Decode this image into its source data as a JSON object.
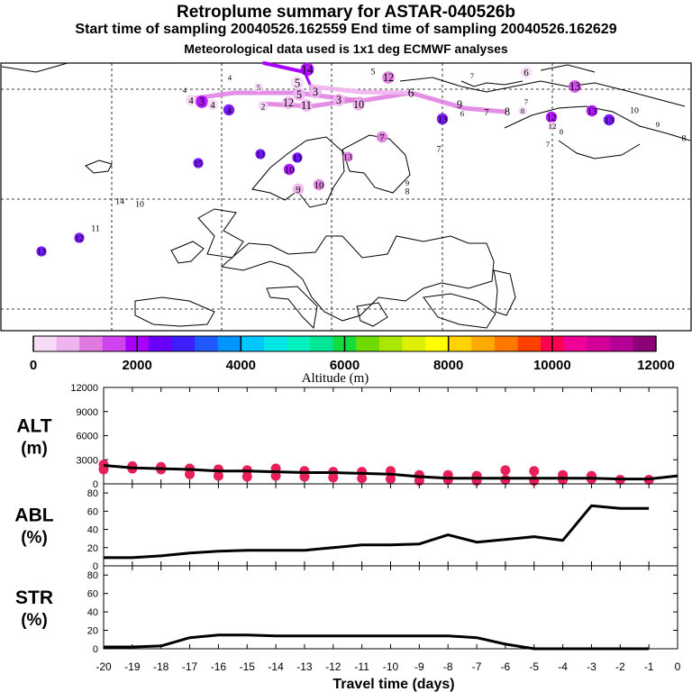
{
  "header": {
    "title": "Retroplume summary for ASTAR-040526b",
    "sampling_line": "Start time of sampling 20040526.162559     End time of sampling 20040526.162629",
    "met_line": "Meteorological data used is 1x1 deg ECMWF analyses"
  },
  "map": {
    "markers": [
      {
        "label": "14",
        "alt": 1800
      },
      {
        "label": "5",
        "alt": 300
      },
      {
        "label": "12",
        "alt": 1200
      },
      {
        "label": "6",
        "alt": 300
      },
      {
        "label": "5",
        "alt": 200
      },
      {
        "label": "13",
        "alt": 1500
      },
      {
        "label": "4",
        "alt": 200
      },
      {
        "label": "5",
        "alt": 300
      },
      {
        "label": "4",
        "alt": 200
      },
      {
        "label": "4",
        "alt": 400
      },
      {
        "label": "5",
        "alt": 600
      },
      {
        "label": "3",
        "alt": 2200
      },
      {
        "label": "4",
        "alt": 400
      },
      {
        "label": "4",
        "alt": 2500
      },
      {
        "label": "2",
        "alt": 300
      },
      {
        "label": "3",
        "alt": 600
      },
      {
        "label": "12",
        "alt": 600
      },
      {
        "label": "11",
        "alt": 800
      },
      {
        "label": "3",
        "alt": 600
      },
      {
        "label": "10",
        "alt": 600
      },
      {
        "label": "6",
        "alt": 200
      },
      {
        "label": "9",
        "alt": 200
      },
      {
        "label": "7",
        "alt": 200
      },
      {
        "label": "8",
        "alt": 200
      },
      {
        "label": "7",
        "alt": 200
      },
      {
        "label": "13",
        "alt": 2300
      },
      {
        "label": "6",
        "alt": 200
      },
      {
        "label": "12",
        "alt": 2000
      },
      {
        "label": "13",
        "alt": 2200
      },
      {
        "label": "8",
        "alt": 200
      },
      {
        "label": "13",
        "alt": 2300
      },
      {
        "label": "15",
        "alt": 2400
      },
      {
        "label": "10",
        "alt": 200
      },
      {
        "label": "9",
        "alt": 200
      },
      {
        "label": "8",
        "alt": 200
      },
      {
        "label": "7",
        "alt": 1200
      },
      {
        "label": "7",
        "alt": 200
      },
      {
        "label": "12",
        "alt": 400
      },
      {
        "label": "7",
        "alt": 200
      },
      {
        "label": "13",
        "alt": 2400
      },
      {
        "label": "15",
        "alt": 300
      },
      {
        "label": "13",
        "alt": 2400
      },
      {
        "label": "10",
        "alt": 1800
      },
      {
        "label": "13",
        "alt": 1200
      },
      {
        "label": "8",
        "alt": 200
      },
      {
        "label": "9",
        "alt": 600
      },
      {
        "label": "10",
        "alt": 1200
      },
      {
        "label": "9",
        "alt": 200
      },
      {
        "label": "8",
        "alt": 400
      },
      {
        "label": "14",
        "alt": 200
      },
      {
        "label": "10",
        "alt": 200
      },
      {
        "label": "11",
        "alt": 200
      },
      {
        "label": "12",
        "alt": 2300
      },
      {
        "label": "13",
        "alt": 2300
      },
      {
        "label": "7",
        "alt": 200
      }
    ]
  },
  "colorbar": {
    "title": "Altitude (m)",
    "ticks": [
      "0",
      "2000",
      "4000",
      "6000",
      "8000",
      "10000",
      "12000"
    ],
    "colors": [
      "#f6dcf6",
      "#efb4ef",
      "#e07ae0",
      "#cf44ef",
      "#a800ff",
      "#6a00ff",
      "#3c1eff",
      "#1e5aff",
      "#0096ff",
      "#00c8ff",
      "#00e6e6",
      "#00f0be",
      "#00e696",
      "#14dc3c",
      "#6edc00",
      "#aae600",
      "#dcf000",
      "#ffff00",
      "#ffd200",
      "#ffaa00",
      "#ff7800",
      "#ff4100",
      "#ff0050",
      "#f00096",
      "#d20096",
      "#b40096",
      "#8c0078"
    ]
  },
  "chart_data": [
    {
      "type": "line",
      "name": "ALT",
      "ylabel": "ALT (m)",
      "ylabel_top": "ALT",
      "ylabel_unit": "(m)",
      "ylim": [
        0,
        12000
      ],
      "yticks": [
        "0",
        "3000",
        "6000",
        "9000",
        "12000"
      ],
      "x": [
        -20,
        -19,
        -18,
        -17,
        -16,
        -15,
        -14,
        -13,
        -12,
        -11,
        -10,
        -9,
        -8,
        -7,
        -6,
        -5,
        -4,
        -3,
        -2,
        -1,
        0
      ],
      "values": [
        2300,
        2000,
        1900,
        1800,
        1600,
        1600,
        1500,
        1400,
        1400,
        1300,
        1200,
        900,
        700,
        700,
        700,
        700,
        700,
        700,
        600,
        600,
        1000
      ],
      "markers": [
        {
          "x": -20,
          "y": 2400
        },
        {
          "x": -20,
          "y": 1800
        },
        {
          "x": -19,
          "y": 2200
        },
        {
          "x": -19,
          "y": 1900
        },
        {
          "x": -18,
          "y": 2100
        },
        {
          "x": -18,
          "y": 1800
        },
        {
          "x": -17,
          "y": 1900
        },
        {
          "x": -17,
          "y": 1200
        },
        {
          "x": -16,
          "y": 1800
        },
        {
          "x": -16,
          "y": 1000
        },
        {
          "x": -15,
          "y": 1700
        },
        {
          "x": -15,
          "y": 900
        },
        {
          "x": -14,
          "y": 1900
        },
        {
          "x": -14,
          "y": 1000
        },
        {
          "x": -13,
          "y": 1600
        },
        {
          "x": -13,
          "y": 900
        },
        {
          "x": -12,
          "y": 1500
        },
        {
          "x": -12,
          "y": 800
        },
        {
          "x": -11,
          "y": 1500
        },
        {
          "x": -11,
          "y": 700
        },
        {
          "x": -10,
          "y": 1600
        },
        {
          "x": -10,
          "y": 600
        },
        {
          "x": -9,
          "y": 1100
        },
        {
          "x": -9,
          "y": 400
        },
        {
          "x": -8,
          "y": 1100
        },
        {
          "x": -8,
          "y": 500
        },
        {
          "x": -7,
          "y": 1000
        },
        {
          "x": -7,
          "y": 400
        },
        {
          "x": -6,
          "y": 1700
        },
        {
          "x": -6,
          "y": 500
        },
        {
          "x": -5,
          "y": 1600
        },
        {
          "x": -5,
          "y": 400
        },
        {
          "x": -4,
          "y": 1100
        },
        {
          "x": -4,
          "y": 500
        },
        {
          "x": -3,
          "y": 1000
        },
        {
          "x": -3,
          "y": 600
        },
        {
          "x": -2,
          "y": 500
        },
        {
          "x": -1,
          "y": 500
        }
      ],
      "marker_color": "#e8205a"
    },
    {
      "type": "line",
      "name": "ABL",
      "ylabel": "ABL (%)",
      "ylabel_top": "ABL",
      "ylabel_unit": "(%)",
      "ylim": [
        0,
        90
      ],
      "yticks": [
        "0",
        "20",
        "40",
        "60",
        "80"
      ],
      "x": [
        -20,
        -19,
        -18,
        -17,
        -16,
        -15,
        -14,
        -13,
        -12,
        -11,
        -10,
        -9,
        -8,
        -7,
        -6,
        -5,
        -4,
        -3,
        -2,
        -1
      ],
      "values": [
        9,
        9,
        11,
        14,
        16,
        17,
        17,
        17,
        20,
        23,
        23,
        24,
        34,
        26,
        29,
        32,
        28,
        66,
        63,
        63
      ]
    },
    {
      "type": "line",
      "name": "STR",
      "ylabel": "STR (%)",
      "ylabel_top": "STR",
      "ylabel_unit": "(%)",
      "ylim": [
        0,
        90
      ],
      "yticks": [
        "0",
        "20",
        "40",
        "60",
        "80"
      ],
      "x": [
        -20,
        -19,
        -18,
        -17,
        -16,
        -15,
        -14,
        -13,
        -12,
        -11,
        -10,
        -9,
        -8,
        -7,
        -6,
        -5,
        -4,
        -3,
        -2,
        -1
      ],
      "values": [
        2,
        2,
        3,
        12,
        15,
        15,
        14,
        14,
        14,
        14,
        14,
        14,
        14,
        12,
        5,
        0,
        0,
        0,
        0,
        0
      ],
      "xlabel": "Travel time (days)",
      "xticks": [
        "-20",
        "-19",
        "-18",
        "-17",
        "-16",
        "-15",
        "-14",
        "-13",
        "-12",
        "-11",
        "-10",
        "-9",
        "-8",
        "-7",
        "-6",
        "-5",
        "-4",
        "-3",
        "-2",
        "-1",
        "0"
      ]
    }
  ]
}
